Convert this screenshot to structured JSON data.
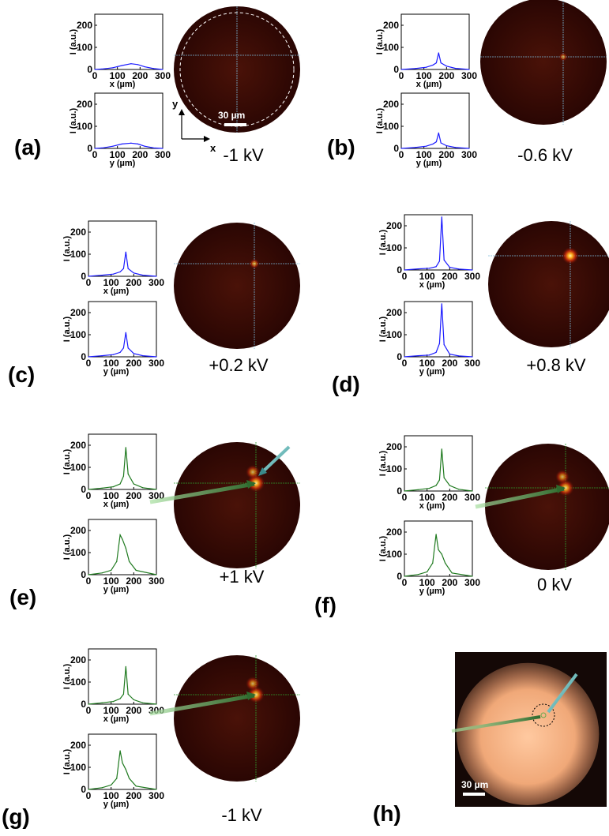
{
  "colors": {
    "x_profile_blue": "#1a1aff",
    "profile_green": "#1f7a1f",
    "crosshair_blue": "#7ab8d8",
    "crosshair_green": "#2e9e2e",
    "image_dark_red": "#3a0a05",
    "arrow_green": "#6aa84f",
    "arrow_cyan": "#6fc6c6"
  },
  "units": {
    "intensity_label": "I (a.u.)",
    "x_label": "x (µm)",
    "y_label": "y (µm)"
  },
  "scalebar": {
    "label_a": "30 µm",
    "label_h": "30 µm"
  },
  "axis_arrows": {
    "x": "x",
    "y": "y"
  },
  "panels": [
    {
      "id": "a",
      "letter": "(a)",
      "voltage": "-1 kV",
      "color": "blue",
      "spot": null,
      "bright": 0
    },
    {
      "id": "b",
      "letter": "(b)",
      "voltage": "-0.6 kV",
      "color": "blue",
      "spot": "small",
      "bright": 0.3
    },
    {
      "id": "c",
      "letter": "(c)",
      "voltage": "+0.2 kV",
      "color": "blue",
      "spot": "small",
      "bright": 0.5
    },
    {
      "id": "d",
      "letter": "(d)",
      "voltage": "+0.8 kV",
      "color": "blue",
      "spot": "bright",
      "bright": 1
    },
    {
      "id": "e",
      "letter": "(e)",
      "voltage": "+1 kV",
      "color": "green",
      "spot": "double",
      "bright": 0.9
    },
    {
      "id": "f",
      "letter": "(f)",
      "voltage": "0 kV",
      "color": "green",
      "spot": "double",
      "bright": 0.8
    },
    {
      "id": "g",
      "letter": "(g)",
      "voltage": "-1 kV",
      "color": "green",
      "spot": "double",
      "bright": 0.8
    },
    {
      "id": "h",
      "letter": "(h)",
      "voltage": "",
      "color": "photo",
      "spot": null,
      "bright": 0
    }
  ],
  "chart_data": {
    "type": "line",
    "ylabel": "I (a.u.)",
    "ylim": [
      0,
      250
    ],
    "xlim": [
      0,
      300
    ],
    "yticks": [
      0,
      100,
      200
    ],
    "xticks": [
      0,
      100,
      200,
      300
    ],
    "profiles": [
      {
        "panel": "a",
        "axis": "x",
        "x": [
          0,
          40,
          80,
          120,
          160,
          190,
          220,
          260,
          300
        ],
        "values": [
          0,
          3,
          8,
          18,
          26,
          22,
          12,
          4,
          0
        ]
      },
      {
        "panel": "a",
        "axis": "y",
        "x": [
          0,
          40,
          80,
          120,
          160,
          190,
          220,
          260,
          300
        ],
        "values": [
          0,
          3,
          10,
          20,
          24,
          20,
          10,
          2,
          0
        ]
      },
      {
        "panel": "b",
        "axis": "x",
        "x": [
          0,
          60,
          110,
          140,
          155,
          165,
          175,
          200,
          240,
          300
        ],
        "values": [
          0,
          4,
          10,
          20,
          30,
          75,
          30,
          15,
          5,
          0
        ]
      },
      {
        "panel": "b",
        "axis": "y",
        "x": [
          0,
          60,
          110,
          140,
          155,
          165,
          175,
          200,
          240,
          300
        ],
        "values": [
          0,
          4,
          10,
          20,
          30,
          70,
          25,
          12,
          4,
          0
        ]
      },
      {
        "panel": "c",
        "axis": "x",
        "x": [
          0,
          60,
          110,
          140,
          155,
          165,
          175,
          200,
          240,
          300
        ],
        "values": [
          0,
          5,
          10,
          20,
          35,
          110,
          35,
          15,
          5,
          0
        ]
      },
      {
        "panel": "c",
        "axis": "y",
        "x": [
          0,
          60,
          110,
          140,
          155,
          165,
          175,
          200,
          240,
          300
        ],
        "values": [
          0,
          5,
          10,
          20,
          40,
          110,
          40,
          15,
          5,
          0
        ]
      },
      {
        "panel": "d",
        "axis": "x",
        "x": [
          0,
          60,
          110,
          140,
          155,
          165,
          175,
          200,
          240,
          300
        ],
        "values": [
          0,
          5,
          8,
          15,
          40,
          240,
          45,
          12,
          4,
          0
        ]
      },
      {
        "panel": "d",
        "axis": "y",
        "x": [
          0,
          60,
          110,
          140,
          155,
          165,
          175,
          200,
          240,
          300
        ],
        "values": [
          0,
          5,
          8,
          20,
          60,
          240,
          55,
          12,
          4,
          0
        ]
      },
      {
        "panel": "e",
        "axis": "x",
        "x": [
          0,
          60,
          110,
          140,
          155,
          165,
          175,
          200,
          240,
          300
        ],
        "values": [
          0,
          6,
          12,
          25,
          60,
          190,
          70,
          25,
          8,
          0
        ]
      },
      {
        "panel": "e",
        "axis": "y",
        "x": [
          0,
          60,
          100,
          125,
          140,
          150,
          165,
          180,
          210,
          300
        ],
        "values": [
          0,
          8,
          20,
          60,
          180,
          160,
          120,
          60,
          20,
          0
        ]
      },
      {
        "panel": "f",
        "axis": "x",
        "x": [
          0,
          60,
          110,
          140,
          155,
          165,
          175,
          200,
          240,
          300
        ],
        "values": [
          0,
          6,
          12,
          25,
          50,
          190,
          60,
          25,
          8,
          0
        ]
      },
      {
        "panel": "f",
        "axis": "y",
        "x": [
          0,
          60,
          100,
          125,
          140,
          150,
          165,
          180,
          210,
          300
        ],
        "values": [
          0,
          8,
          20,
          60,
          190,
          120,
          100,
          60,
          15,
          0
        ]
      },
      {
        "panel": "g",
        "axis": "x",
        "x": [
          0,
          60,
          110,
          140,
          155,
          165,
          175,
          200,
          240,
          300
        ],
        "values": [
          0,
          6,
          12,
          25,
          45,
          170,
          45,
          20,
          6,
          0
        ]
      },
      {
        "panel": "g",
        "axis": "y",
        "x": [
          0,
          60,
          100,
          125,
          140,
          150,
          165,
          180,
          210,
          300
        ],
        "values": [
          0,
          8,
          20,
          50,
          175,
          120,
          90,
          50,
          15,
          0
        ]
      }
    ]
  }
}
